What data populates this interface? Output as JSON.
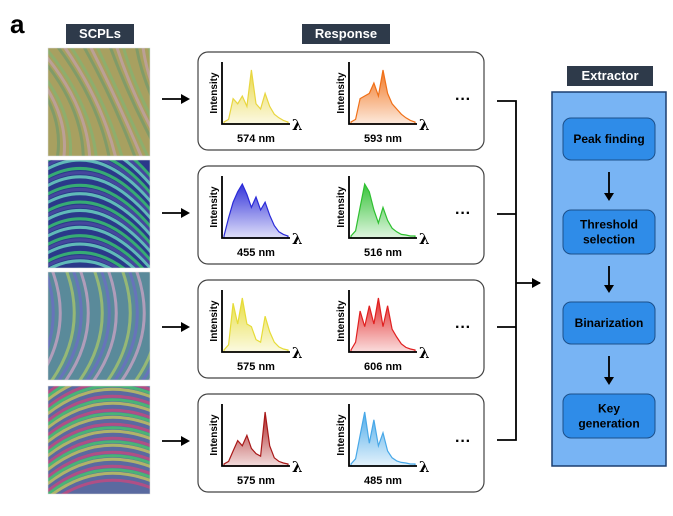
{
  "panel_label": "a",
  "headers": {
    "scpls": "SCPLs",
    "response": "Response",
    "extractor": "Extractor"
  },
  "axis": {
    "ylabel": "Intensity",
    "xsymbol": "λ",
    "more": "···"
  },
  "rows": [
    {
      "spectra": [
        {
          "peak_label": "574 nm",
          "color": "#e8d640",
          "shape": [
            0,
            0.05,
            0.45,
            0.35,
            0.5,
            0.3,
            1.0,
            0.35,
            0.25,
            0.55,
            0.3,
            0.15,
            0.08,
            0.03,
            0
          ]
        },
        {
          "peak_label": "593 nm",
          "color": "#f07018",
          "shape": [
            0,
            0.05,
            0.45,
            0.5,
            0.55,
            0.75,
            0.5,
            1.0,
            0.55,
            0.35,
            0.25,
            0.15,
            0.08,
            0.03,
            0
          ]
        }
      ]
    },
    {
      "spectra": [
        {
          "peak_label": "455 nm",
          "color": "#2a2ad8",
          "shape": [
            0,
            0.35,
            0.65,
            0.85,
            1.0,
            0.8,
            0.55,
            0.75,
            0.5,
            0.65,
            0.4,
            0.2,
            0.08,
            0.03,
            0
          ]
        },
        {
          "peak_label": "516 nm",
          "color": "#2ec030",
          "shape": [
            0,
            0.1,
            0.55,
            1.0,
            0.85,
            0.5,
            0.25,
            0.55,
            0.3,
            0.15,
            0.08,
            0.03,
            0.02,
            0,
            0
          ]
        }
      ]
    },
    {
      "spectra": [
        {
          "peak_label": "575 nm",
          "color": "#e6dc38",
          "shape": [
            0,
            0.1,
            0.9,
            0.5,
            1.0,
            0.5,
            0.45,
            0.2,
            0.15,
            0.65,
            0.35,
            0.15,
            0.06,
            0.02,
            0
          ]
        },
        {
          "peak_label": "606 nm",
          "color": "#e02020",
          "shape": [
            0,
            0.15,
            0.75,
            0.45,
            0.85,
            0.5,
            1.0,
            0.45,
            0.85,
            0.4,
            0.25,
            0.12,
            0.05,
            0.02,
            0
          ]
        }
      ]
    },
    {
      "spectra": [
        {
          "peak_label": "575 nm",
          "color": "#a81818",
          "shape": [
            0,
            0.05,
            0.25,
            0.45,
            0.35,
            0.55,
            0.3,
            0.2,
            0.15,
            1.0,
            0.35,
            0.12,
            0.05,
            0.02,
            0
          ]
        },
        {
          "peak_label": "485 nm",
          "color": "#48a8e8",
          "shape": [
            0,
            0.1,
            0.55,
            1.0,
            0.4,
            0.85,
            0.35,
            0.6,
            0.25,
            0.12,
            0.06,
            0.03,
            0.02,
            0,
            0
          ]
        }
      ]
    }
  ],
  "extractor_steps": [
    "Peak finding",
    "Threshold selection",
    "Binarization",
    "Key generation"
  ],
  "colors": {
    "extractor_bg": "#78b4f4",
    "step_bg": "#2f8ce8",
    "header_bg": "#2e3a4a"
  }
}
